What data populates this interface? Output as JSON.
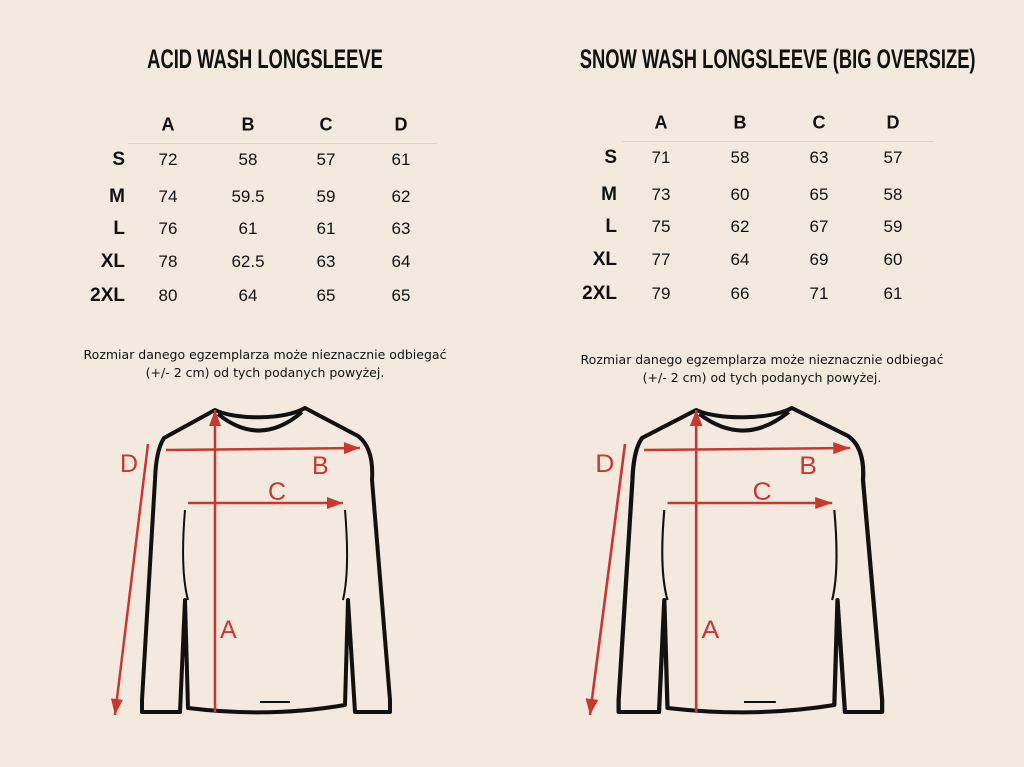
{
  "colors": {
    "background": "#f3e9df",
    "accent": "#c8382e",
    "text": "#111111"
  },
  "charts": [
    {
      "title": "ACID WASH LONGSLEEVE",
      "columns": [
        "A",
        "B",
        "C",
        "D"
      ],
      "rows": [
        {
          "size": "S",
          "values": [
            "72",
            "58",
            "57",
            "61"
          ]
        },
        {
          "size": "M",
          "values": [
            "74",
            "59.5",
            "59",
            "62"
          ]
        },
        {
          "size": "L",
          "values": [
            "76",
            "61",
            "61",
            "63"
          ]
        },
        {
          "size": "XL",
          "values": [
            "78",
            "62.5",
            "63",
            "64"
          ]
        },
        {
          "size": "2XL",
          "values": [
            "80",
            "64",
            "65",
            "65"
          ]
        }
      ],
      "note_line1": "Rozmiar danego egzemplarza może nieznacznie odbiegać",
      "note_line2": "(+/- 2 cm) od tych podanych powyżej.",
      "diagram_labels": {
        "a": "A",
        "b": "B",
        "c": "C",
        "d": "D"
      }
    },
    {
      "title": "SNOW WASH LONGSLEEVE (BIG OVERSIZE)",
      "columns": [
        "A",
        "B",
        "C",
        "D"
      ],
      "rows": [
        {
          "size": "S",
          "values": [
            "71",
            "58",
            "63",
            "57"
          ]
        },
        {
          "size": "M",
          "values": [
            "73",
            "60",
            "65",
            "58"
          ]
        },
        {
          "size": "L",
          "values": [
            "75",
            "62",
            "67",
            "59"
          ]
        },
        {
          "size": "XL",
          "values": [
            "77",
            "64",
            "69",
            "60"
          ]
        },
        {
          "size": "2XL",
          "values": [
            "79",
            "66",
            "71",
            "61"
          ]
        }
      ],
      "note_line1": "Rozmiar danego egzemplarza może nieznacznie odbiegać",
      "note_line2": "(+/- 2 cm) od tych podanych powyżej.",
      "diagram_labels": {
        "a": "A",
        "b": "B",
        "c": "C",
        "d": "D"
      }
    }
  ]
}
